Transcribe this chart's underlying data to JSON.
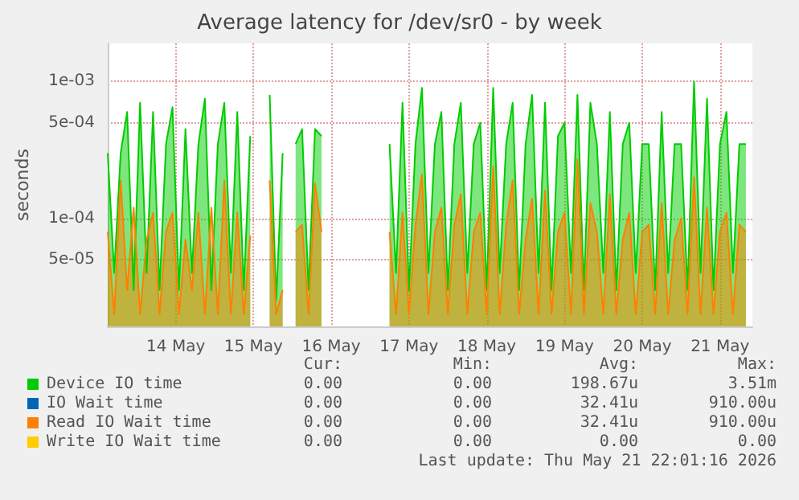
{
  "chart_data": {
    "type": "area",
    "title": "Average latency for /dev/sr0 - by week",
    "ylabel": "seconds",
    "log": "y",
    "grid": true,
    "legend": "bottom",
    "ylim": [
      1.63e-05,
      0.0019
    ],
    "yticks": [
      {
        "value": 5e-05,
        "label": "5e-05"
      },
      {
        "value": 0.0001,
        "label": "1e-04"
      },
      {
        "value": 0.0005,
        "label": "5e-04"
      },
      {
        "value": 0.001,
        "label": "1e-03"
      }
    ],
    "xlim": [
      "2026-05-13T15:00",
      "2026-05-21T22:00"
    ],
    "xticks": [
      {
        "value": "2026-05-14T12:00",
        "label": "14 May"
      },
      {
        "value": "2026-05-15T12:00",
        "label": "15 May"
      },
      {
        "value": "2026-05-16T12:00",
        "label": "16 May"
      },
      {
        "value": "2026-05-17T12:00",
        "label": "17 May"
      },
      {
        "value": "2026-05-18T12:00",
        "label": "18 May"
      },
      {
        "value": "2026-05-19T12:00",
        "label": "19 May"
      },
      {
        "value": "2026-05-20T12:00",
        "label": "20 May"
      },
      {
        "value": "2026-05-21T12:00",
        "label": "21 May"
      }
    ],
    "x": [
      "2026-05-13T15:00",
      "2026-05-13T17:00",
      "2026-05-13T19:00",
      "2026-05-13T21:00",
      "2026-05-13T23:00",
      "2026-05-14T01:00",
      "2026-05-14T03:00",
      "2026-05-14T05:00",
      "2026-05-14T07:00",
      "2026-05-14T09:00",
      "2026-05-14T11:00",
      "2026-05-14T13:00",
      "2026-05-14T15:00",
      "2026-05-14T17:00",
      "2026-05-14T19:00",
      "2026-05-14T21:00",
      "2026-05-14T23:00",
      "2026-05-15T01:00",
      "2026-05-15T03:00",
      "2026-05-15T05:00",
      "2026-05-15T07:00",
      "2026-05-15T09:00",
      "2026-05-15T11:00",
      "2026-05-15T15:00",
      "2026-05-15T17:00",
      "2026-05-15T19:00",
      "2026-05-15T21:00",
      "2026-05-15T23:00",
      "2026-05-16T01:00",
      "2026-05-16T03:00",
      "2026-05-16T05:00",
      "2026-05-16T07:00",
      "2026-05-16T09:00",
      "2026-05-16T13:00",
      "2026-05-17T06:00",
      "2026-05-17T08:00",
      "2026-05-17T10:00",
      "2026-05-17T12:00",
      "2026-05-17T14:00",
      "2026-05-17T16:00",
      "2026-05-17T18:00",
      "2026-05-17T20:00",
      "2026-05-17T22:00",
      "2026-05-18T00:00",
      "2026-05-18T02:00",
      "2026-05-18T04:00",
      "2026-05-18T06:00",
      "2026-05-18T08:00",
      "2026-05-18T10:00",
      "2026-05-18T12:00",
      "2026-05-18T14:00",
      "2026-05-18T16:00",
      "2026-05-18T18:00",
      "2026-05-18T20:00",
      "2026-05-18T22:00",
      "2026-05-19T00:00",
      "2026-05-19T02:00",
      "2026-05-19T04:00",
      "2026-05-19T06:00",
      "2026-05-19T08:00",
      "2026-05-19T10:00",
      "2026-05-19T12:00",
      "2026-05-19T14:00",
      "2026-05-19T16:00",
      "2026-05-19T18:00",
      "2026-05-19T20:00",
      "2026-05-19T22:00",
      "2026-05-20T00:00",
      "2026-05-20T02:00",
      "2026-05-20T04:00",
      "2026-05-20T06:00",
      "2026-05-20T08:00",
      "2026-05-20T10:00",
      "2026-05-20T12:00",
      "2026-05-20T14:00",
      "2026-05-20T16:00",
      "2026-05-20T18:00",
      "2026-05-20T20:00",
      "2026-05-20T22:00",
      "2026-05-21T00:00",
      "2026-05-21T02:00",
      "2026-05-21T04:00",
      "2026-05-21T06:00",
      "2026-05-21T08:00",
      "2026-05-21T10:00",
      "2026-05-21T12:00",
      "2026-05-21T14:00",
      "2026-05-21T16:00",
      "2026-05-21T18:00",
      "2026-05-21T20:00"
    ],
    "series": [
      {
        "name": "Device IO time",
        "color": "#00cc00",
        "values": [
          0.0003,
          4e-05,
          0.0003,
          0.0006,
          3e-05,
          0.0007,
          4e-05,
          0.0006,
          3e-05,
          0.00035,
          0.00065,
          3e-05,
          0.00045,
          4e-05,
          0.00035,
          0.00075,
          3e-05,
          0.00035,
          0.0007,
          4e-05,
          0.0006,
          3e-05,
          0.0004,
          null,
          0.0008,
          2.5e-05,
          0.0003,
          null,
          0.00035,
          0.00045,
          3e-05,
          0.00045,
          0.0004,
          null,
          0.00035,
          4e-05,
          0.0007,
          3e-05,
          0.00035,
          0.0009,
          4e-05,
          0.00035,
          0.0006,
          3e-05,
          0.00035,
          0.0007,
          4e-05,
          0.00035,
          0.0005,
          3e-05,
          0.0009,
          4e-05,
          0.00035,
          0.0007,
          3e-05,
          0.00035,
          0.0008,
          4e-05,
          0.0007,
          3e-05,
          0.0004,
          0.0005,
          4e-05,
          0.0008,
          3e-05,
          0.0007,
          0.00035,
          4e-05,
          0.0006,
          3e-05,
          0.00035,
          0.0005,
          4e-05,
          0.00035,
          0.00035,
          3e-05,
          0.0006,
          4e-05,
          0.00035,
          0.00035,
          3e-05,
          0.001,
          4e-05,
          0.00075,
          3e-05,
          0.00035,
          0.0006,
          4e-05,
          0.00035,
          0.00035
        ]
      },
      {
        "name": "IO Wait time",
        "color": "#0066b3",
        "values": [
          null,
          null,
          null,
          null,
          null,
          null,
          null,
          null,
          null,
          null,
          null,
          null,
          null,
          null,
          null,
          null,
          null,
          null,
          null,
          null,
          null,
          null,
          null,
          null,
          null,
          null,
          null,
          null,
          null,
          null,
          null,
          null,
          null,
          null,
          null,
          null,
          null,
          null,
          null,
          null,
          null,
          null,
          null,
          null,
          null,
          null,
          null,
          null,
          null,
          null,
          null,
          null,
          null,
          null,
          null,
          null,
          null,
          null,
          null,
          null,
          null,
          null,
          null,
          null,
          null,
          null,
          null,
          null,
          null,
          null,
          null,
          null,
          null,
          null,
          null,
          null,
          null,
          null,
          null,
          null,
          null,
          null,
          null,
          null,
          null,
          null,
          null,
          null,
          null,
          null
        ]
      },
      {
        "name": "Read IO Wait time",
        "color": "#ff8000",
        "values": [
          8e-05,
          2e-05,
          0.00019,
          3e-05,
          0.00012,
          2e-05,
          7e-05,
          0.00011,
          2e-05,
          8e-05,
          0.00011,
          2e-05,
          7e-05,
          3e-05,
          0.00011,
          2e-05,
          0.00012,
          2e-05,
          0.00019,
          2e-05,
          0.00011,
          2e-05,
          7.5e-05,
          null,
          0.00019,
          2e-05,
          3e-05,
          null,
          8e-05,
          9e-05,
          2e-05,
          0.00018,
          8e-05,
          null,
          8e-05,
          2e-05,
          0.00011,
          2e-05,
          9e-05,
          0.00021,
          2e-05,
          8e-05,
          0.00012,
          2e-05,
          9e-05,
          0.00015,
          2e-05,
          8e-05,
          0.00011,
          2e-05,
          0.00024,
          2e-05,
          9e-05,
          0.00019,
          2e-05,
          7e-05,
          0.00014,
          2e-05,
          0.00016,
          2e-05,
          8e-05,
          0.00011,
          2e-05,
          0.00027,
          2e-05,
          0.00013,
          8e-05,
          2e-05,
          0.00015,
          2e-05,
          7e-05,
          0.00011,
          2e-05,
          8e-05,
          9e-05,
          2e-05,
          0.00013,
          2e-05,
          7e-05,
          0.0001,
          2e-05,
          0.0002,
          2e-05,
          0.00012,
          2e-05,
          8e-05,
          0.00011,
          2e-05,
          9e-05,
          8e-05
        ]
      },
      {
        "name": "Write IO Wait time",
        "color": "#ffcc00",
        "values": [
          null,
          null,
          null,
          null,
          null,
          null,
          null,
          null,
          null,
          null,
          null,
          null,
          null,
          null,
          null,
          null,
          null,
          null,
          null,
          null,
          null,
          null,
          null,
          null,
          null,
          null,
          null,
          null,
          null,
          null,
          null,
          null,
          null,
          null,
          null,
          null,
          null,
          null,
          null,
          null,
          null,
          null,
          null,
          null,
          null,
          null,
          null,
          null,
          null,
          null,
          null,
          null,
          null,
          null,
          null,
          null,
          null,
          null,
          null,
          null,
          null,
          null,
          null,
          null,
          null,
          null,
          null,
          null,
          null,
          null,
          null,
          null,
          null,
          null,
          null,
          null,
          null,
          null,
          null,
          null,
          null,
          null,
          null,
          null,
          null,
          null,
          null,
          null,
          null,
          null
        ]
      }
    ],
    "annotations": [
      "Cur:",
      "Min:",
      "Avg:",
      "Max:",
      "0.00",
      "0.00",
      "198.67u",
      "3.51m",
      "0.00",
      "0.00",
      "32.41u",
      "910.00u",
      "0.00",
      "0.00",
      "32.41u",
      "910.00u",
      "0.00",
      "0.00",
      "0.00",
      "0.00",
      "Last update: Thu May 21 22:01:16 2026"
    ]
  }
}
